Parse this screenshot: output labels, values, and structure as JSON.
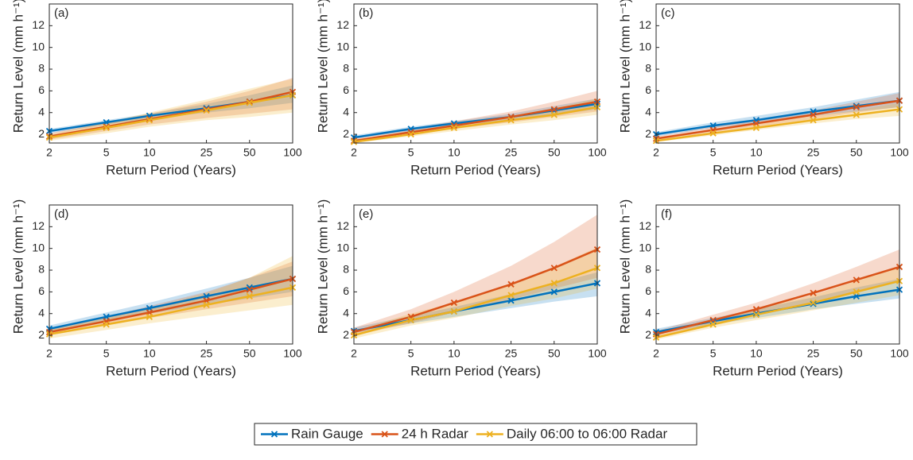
{
  "legend": [
    {
      "name": "Rain Gauge",
      "color": "#0072bd"
    },
    {
      "name": "24 h Radar",
      "color": "#d95319"
    },
    {
      "name": "Daily 06:00 to 06:00 Radar",
      "color": "#edb120"
    }
  ],
  "chart_data": [
    {
      "type": "line",
      "label": "(a)",
      "xlabel": "Return Period (Years)",
      "ylabel": "Return Level (mm h⁻¹)",
      "x": [
        2,
        5,
        10,
        25,
        50,
        100
      ],
      "xscale": "log",
      "xlim": [
        2,
        100
      ],
      "xticks": [
        2,
        5,
        10,
        25,
        50,
        100
      ],
      "ylim": [
        1.2,
        14
      ],
      "yticks": [
        2,
        4,
        6,
        8,
        10,
        12
      ],
      "series": [
        {
          "values": [
            2.3,
            3.1,
            3.7,
            4.4,
            5.0,
            5.6
          ],
          "lower": [
            2.1,
            2.9,
            3.4,
            4.0,
            4.4,
            4.9
          ],
          "upper": [
            2.5,
            3.3,
            3.9,
            4.8,
            5.6,
            6.5
          ]
        },
        {
          "values": [
            1.8,
            2.7,
            3.4,
            4.3,
            5.0,
            5.9
          ],
          "lower": [
            1.5,
            2.3,
            2.9,
            3.5,
            3.9,
            4.3
          ],
          "upper": [
            2.1,
            3.1,
            3.9,
            5.0,
            6.0,
            7.2
          ]
        },
        {
          "values": [
            1.7,
            2.6,
            3.3,
            4.2,
            4.9,
            5.6
          ],
          "lower": [
            1.4,
            2.1,
            2.7,
            3.3,
            3.6,
            4.0
          ],
          "upper": [
            2.0,
            3.1,
            4.0,
            5.2,
            6.2,
            7.1
          ]
        }
      ]
    },
    {
      "type": "line",
      "label": "(b)",
      "xlabel": "Return Period (Years)",
      "ylabel": "Return Level (mm h⁻¹)",
      "x": [
        2,
        5,
        10,
        25,
        50,
        100
      ],
      "xscale": "log",
      "xlim": [
        2,
        100
      ],
      "xticks": [
        2,
        5,
        10,
        25,
        50,
        100
      ],
      "ylim": [
        1.2,
        14
      ],
      "yticks": [
        2,
        4,
        6,
        8,
        10,
        12
      ],
      "series": [
        {
          "values": [
            1.7,
            2.5,
            3.0,
            3.6,
            4.2,
            4.8
          ],
          "lower": [
            1.6,
            2.3,
            2.8,
            3.3,
            3.8,
            4.3
          ],
          "upper": [
            1.9,
            2.7,
            3.2,
            3.9,
            4.6,
            5.3
          ]
        },
        {
          "values": [
            1.4,
            2.2,
            2.8,
            3.6,
            4.3,
            5.0
          ],
          "lower": [
            1.2,
            2.0,
            2.5,
            3.1,
            3.6,
            4.1
          ],
          "upper": [
            1.6,
            2.5,
            3.2,
            4.1,
            5.0,
            6.0
          ]
        },
        {
          "values": [
            1.3,
            2.0,
            2.6,
            3.3,
            3.8,
            4.5
          ],
          "lower": [
            1.2,
            1.8,
            2.3,
            2.9,
            3.3,
            3.8
          ],
          "upper": [
            1.5,
            2.3,
            2.9,
            3.7,
            4.4,
            5.3
          ]
        }
      ]
    },
    {
      "type": "line",
      "label": "(c)",
      "xlabel": "Return Period (Years)",
      "ylabel": "Return Level (mm h⁻¹)",
      "x": [
        2,
        5,
        10,
        25,
        50,
        100
      ],
      "xscale": "log",
      "xlim": [
        2,
        100
      ],
      "xticks": [
        2,
        5,
        10,
        25,
        50,
        100
      ],
      "ylim": [
        1.2,
        14
      ],
      "yticks": [
        2,
        4,
        6,
        8,
        10,
        12
      ],
      "series": [
        {
          "values": [
            2.0,
            2.8,
            3.3,
            4.1,
            4.6,
            5.1
          ],
          "lower": [
            1.8,
            2.6,
            3.0,
            3.7,
            4.1,
            4.5
          ],
          "upper": [
            2.2,
            3.1,
            3.7,
            4.5,
            5.2,
            5.9
          ]
        },
        {
          "values": [
            1.6,
            2.4,
            3.0,
            3.8,
            4.5,
            5.1
          ],
          "lower": [
            1.5,
            2.2,
            2.7,
            3.4,
            4.0,
            4.5
          ],
          "upper": [
            1.8,
            2.7,
            3.3,
            4.2,
            5.0,
            5.8
          ]
        },
        {
          "values": [
            1.4,
            2.1,
            2.6,
            3.3,
            3.8,
            4.3
          ],
          "lower": [
            1.3,
            1.9,
            2.4,
            3.0,
            3.4,
            3.7
          ],
          "upper": [
            1.6,
            2.3,
            2.9,
            3.7,
            4.2,
            4.9
          ]
        }
      ]
    },
    {
      "type": "line",
      "label": "(d)",
      "xlabel": "Return Period (Years)",
      "ylabel": "Return Level (mm h⁻¹)",
      "x": [
        2,
        5,
        10,
        25,
        50,
        100
      ],
      "xscale": "log",
      "xlim": [
        2,
        100
      ],
      "xticks": [
        2,
        5,
        10,
        25,
        50,
        100
      ],
      "ylim": [
        1.2,
        14
      ],
      "yticks": [
        2,
        4,
        6,
        8,
        10,
        12
      ],
      "series": [
        {
          "values": [
            2.6,
            3.7,
            4.5,
            5.6,
            6.4,
            7.2
          ],
          "lower": [
            2.3,
            3.3,
            4.0,
            4.8,
            5.4,
            6.0
          ],
          "upper": [
            2.9,
            4.1,
            5.0,
            6.3,
            7.3,
            8.4
          ]
        },
        {
          "values": [
            2.3,
            3.3,
            4.1,
            5.2,
            6.2,
            7.2
          ],
          "lower": [
            2.0,
            2.9,
            3.6,
            4.4,
            5.0,
            5.6
          ],
          "upper": [
            2.6,
            3.7,
            4.7,
            6.0,
            7.3,
            8.8
          ]
        },
        {
          "values": [
            2.1,
            3.0,
            3.7,
            4.8,
            5.6,
            6.4
          ],
          "lower": [
            1.7,
            2.5,
            3.1,
            3.8,
            4.3,
            4.8
          ],
          "upper": [
            2.5,
            3.6,
            4.5,
            5.9,
            7.3,
            9.3
          ]
        }
      ]
    },
    {
      "type": "line",
      "label": "(e)",
      "xlabel": "Return Period (Years)",
      "ylabel": "Return Level (mm h⁻¹)",
      "x": [
        2,
        5,
        10,
        25,
        50,
        100
      ],
      "xscale": "log",
      "xlim": [
        2,
        100
      ],
      "xticks": [
        2,
        5,
        10,
        25,
        50,
        100
      ],
      "ylim": [
        1.2,
        14
      ],
      "yticks": [
        2,
        4,
        6,
        8,
        10,
        12
      ],
      "series": [
        {
          "values": [
            2.4,
            3.4,
            4.2,
            5.2,
            6.0,
            6.8
          ],
          "lower": [
            2.2,
            3.1,
            3.7,
            4.5,
            5.1,
            5.6
          ],
          "upper": [
            2.7,
            3.8,
            4.6,
            5.8,
            6.8,
            7.8
          ]
        },
        {
          "values": [
            2.3,
            3.7,
            5.0,
            6.7,
            8.2,
            9.9
          ],
          "lower": [
            2.0,
            3.1,
            4.1,
            5.3,
            6.3,
            7.3
          ],
          "upper": [
            2.7,
            4.4,
            6.0,
            8.4,
            10.6,
            13.1
          ]
        },
        {
          "values": [
            2.0,
            3.4,
            4.2,
            5.7,
            6.8,
            8.2
          ],
          "lower": [
            1.7,
            2.9,
            3.6,
            4.7,
            5.4,
            6.3
          ],
          "upper": [
            2.4,
            4.0,
            5.0,
            6.8,
            8.3,
            10.1
          ]
        }
      ]
    },
    {
      "type": "line",
      "label": "(f)",
      "xlabel": "Return Period (Years)",
      "ylabel": "Return Level (mm h⁻¹)",
      "x": [
        2,
        5,
        10,
        25,
        50,
        100
      ],
      "xscale": "log",
      "xlim": [
        2,
        100
      ],
      "xticks": [
        2,
        5,
        10,
        25,
        50,
        100
      ],
      "ylim": [
        1.2,
        14
      ],
      "yticks": [
        2,
        4,
        6,
        8,
        10,
        12
      ],
      "series": [
        {
          "values": [
            2.3,
            3.3,
            4.0,
            4.9,
            5.6,
            6.2
          ],
          "lower": [
            2.1,
            3.0,
            3.6,
            4.4,
            4.9,
            5.4
          ],
          "upper": [
            2.6,
            3.6,
            4.4,
            5.5,
            6.4,
            7.2
          ]
        },
        {
          "values": [
            2.1,
            3.4,
            4.4,
            5.9,
            7.1,
            8.3
          ],
          "lower": [
            1.9,
            3.0,
            3.9,
            5.1,
            6.0,
            6.9
          ],
          "upper": [
            2.4,
            3.9,
            5.0,
            6.8,
            8.3,
            9.9
          ]
        },
        {
          "values": [
            1.8,
            3.0,
            3.9,
            5.0,
            6.0,
            7.0
          ],
          "lower": [
            1.6,
            2.7,
            3.4,
            4.3,
            5.0,
            5.7
          ],
          "upper": [
            2.1,
            3.3,
            4.4,
            5.7,
            7.0,
            8.3
          ]
        }
      ]
    }
  ]
}
